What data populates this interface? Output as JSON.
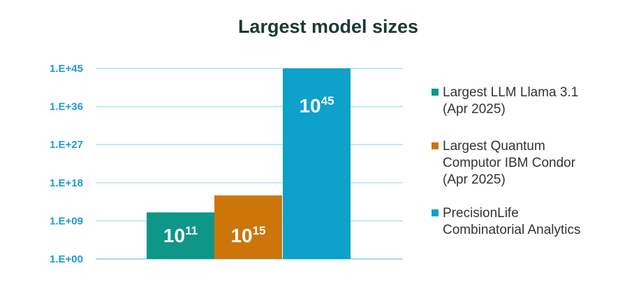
{
  "chart_data": {
    "type": "bar",
    "title": "Largest model sizes",
    "y_axis": {
      "scale": "log10",
      "ylim": [
        0,
        45
      ],
      "ticks": [
        0,
        9,
        18,
        27,
        36,
        45
      ],
      "tick_labels": [
        "1.E+00",
        "1.E+09",
        "1.E+18",
        "1.E+27",
        "1.E+36",
        "1.E+45"
      ]
    },
    "grid": true,
    "legend_position": "right",
    "categories": [
      "Largest LLM Llama 3.1 (Apr 2025)",
      "Largest Quantum Computor IBM Condor (Apr 2025)",
      "PrecisionLife Combinatorial Analytics"
    ],
    "values": [
      100000000000.0,
      1000000000000000.0,
      1e+45
    ],
    "exponents": [
      11,
      15,
      45
    ],
    "data_labels": [
      {
        "base": "10",
        "exp": "11"
      },
      {
        "base": "10",
        "exp": "15"
      },
      {
        "base": "10",
        "exp": "45"
      }
    ],
    "colors": [
      "#0e9688",
      "#cc7609",
      "#0ea1c9"
    ],
    "legend": [
      {
        "lines": [
          "Largest LLM Llama 3.1",
          "(Apr 2025)"
        ]
      },
      {
        "lines": [
          "Largest Quantum",
          "Computor IBM Condor",
          "(Apr 2025)"
        ]
      },
      {
        "lines": [
          "PrecisionLife",
          "Combinatorial Analytics"
        ]
      }
    ]
  }
}
